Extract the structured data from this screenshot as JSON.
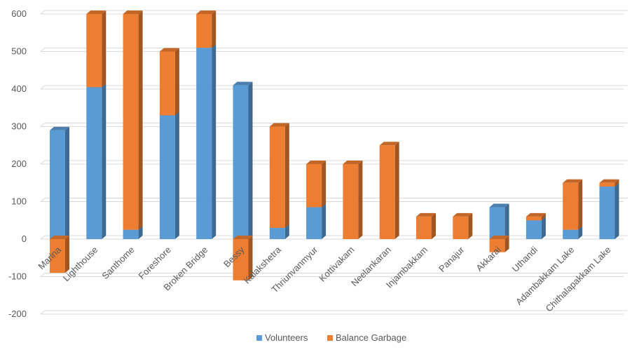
{
  "chart_data": {
    "type": "bar",
    "stacked": true,
    "style": "3d-column",
    "categories": [
      "Marina",
      "Lighthouse",
      "Santhome",
      "Foreshore",
      "Broken Bridge",
      "Bessy",
      "Kalakshetra",
      "Thriunvanmyur",
      "Kottivakam",
      "Neelankaran",
      "Injambakkam",
      "Panajur",
      "Akkarai",
      "Uthandi",
      "Adambakkam Lake",
      "Chithalapakkam Lake"
    ],
    "series": [
      {
        "name": "Volunteers",
        "color": "#5B9BD5",
        "values": [
          290,
          405,
          25,
          330,
          510,
          410,
          30,
          85,
          0,
          0,
          0,
          0,
          85,
          50,
          25,
          140
        ]
      },
      {
        "name": "Balance Garbage",
        "color": "#ED7D31",
        "values": [
          -90,
          195,
          575,
          170,
          90,
          -110,
          270,
          115,
          200,
          250,
          60,
          60,
          -35,
          10,
          125,
          10
        ]
      }
    ],
    "ylim": [
      -200,
      600
    ],
    "yticks": [
      -200,
      -100,
      0,
      100,
      200,
      300,
      400,
      500,
      600
    ],
    "grid": true,
    "legend_position": "bottom",
    "title": "",
    "xlabel": "",
    "ylabel": ""
  }
}
